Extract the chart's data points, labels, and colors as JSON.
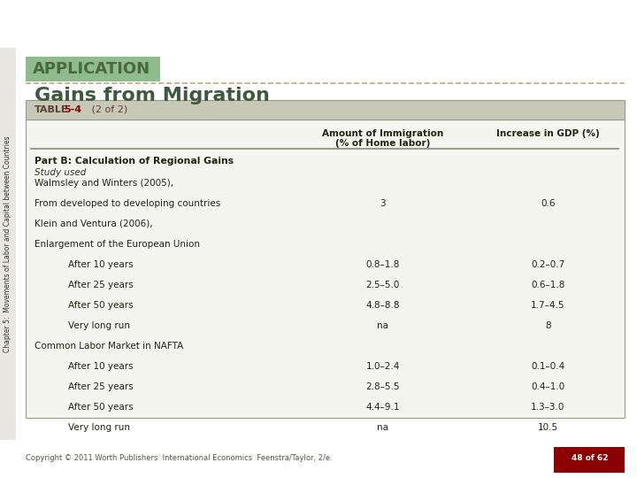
{
  "title_app": "APPLICATION",
  "title_main": "Gains from Migration",
  "table_label": "TABLE",
  "table_num": "5-4",
  "table_sub": " (2 of 2)",
  "col_header1": "Amount of Immigration\n(% of Home labor)",
  "col_header2": "Increase in GDP (%)",
  "section_title": "Part B: Calculation of Regional Gains",
  "study_label": "Study used",
  "rows": [
    {
      "label": "Walmsley and Winters (2005),",
      "indent": 0,
      "col1": "",
      "col2": ""
    },
    {
      "label": "From developed to developing countries",
      "indent": 0,
      "col1": "3",
      "col2": "0.6"
    },
    {
      "label": "Klein and Ventura (2006),",
      "indent": 0,
      "col1": "",
      "col2": ""
    },
    {
      "label": "Enlargement of the European Union",
      "indent": 0,
      "col1": "",
      "col2": ""
    },
    {
      "label": "After 10 years",
      "indent": 1,
      "col1": "0.8–1.8",
      "col2": "0.2–0.7"
    },
    {
      "label": "After 25 years",
      "indent": 1,
      "col1": "2.5–5.0",
      "col2": "0.6–1.8"
    },
    {
      "label": "After 50 years",
      "indent": 1,
      "col1": "4.8–8.8",
      "col2": "1.7–4.5"
    },
    {
      "label": "Very long run",
      "indent": 1,
      "col1": "na",
      "col2": "8"
    },
    {
      "label": "Common Labor Market in NAFTA",
      "indent": 0,
      "col1": "",
      "col2": ""
    },
    {
      "label": "After 10 years",
      "indent": 1,
      "col1": "1.0–2.4",
      "col2": "0.1–0.4"
    },
    {
      "label": "After 25 years",
      "indent": 1,
      "col1": "2.8–5.5",
      "col2": "0.4–1.0"
    },
    {
      "label": "After 50 years",
      "indent": 1,
      "col1": "4.4–9.1",
      "col2": "1.3–3.0"
    },
    {
      "label": "Very long run",
      "indent": 1,
      "col1": "na",
      "col2": "10.5"
    }
  ],
  "sidebar_text": "Chapter 5:  Movements of Labor and Capital between Countries",
  "footer_text": "Copyright © 2011 Worth Publishers  International Economics  Feenstra/Taylor, 2/e.",
  "page_label": "48 of 62",
  "color_app_bg": "#8FBC8F",
  "color_app_text": "#4a6741",
  "color_title_text": "#3d5a3e",
  "color_table_header_bg": "#c8c8b8",
  "color_table_header_text": "#5c4033",
  "color_table_border": "#999988",
  "color_table_bg": "#f5f5f0",
  "color_body_bg": "#ffffff",
  "color_sidebar_bg": "#e8e8e0",
  "color_page_label_bg": "#8B0000",
  "color_page_label_text": "#ffffff",
  "color_separator_line": "#c8a878",
  "color_header_rule": "#888877"
}
